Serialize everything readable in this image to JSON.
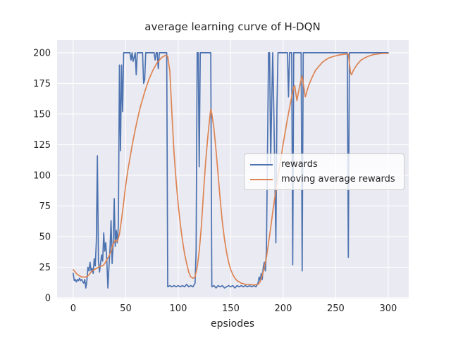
{
  "chart_data": {
    "type": "line",
    "title": "average learning curve of H-DQN",
    "xlabel": "epsiodes",
    "ylabel": "",
    "x_ticks": [
      0,
      50,
      100,
      150,
      200,
      250,
      300
    ],
    "y_ticks": [
      0,
      25,
      50,
      75,
      100,
      125,
      150,
      175,
      200
    ],
    "xlim": [
      -15.4,
      319.5
    ],
    "ylim": [
      -0.6,
      210.3
    ],
    "grid": true,
    "legend_position": "center right",
    "plot_background_color": "#EAEAF2",
    "grid_color": "#FFFFFF",
    "text_color": "#262626",
    "series": [
      {
        "name": "rewards",
        "color": "#4C72B0",
        "points": [
          [
            0,
            20
          ],
          [
            1,
            14
          ],
          [
            2,
            15
          ],
          [
            3,
            13
          ],
          [
            4,
            15
          ],
          [
            5,
            14
          ],
          [
            6,
            16
          ],
          [
            7,
            14
          ],
          [
            8,
            15
          ],
          [
            9,
            13
          ],
          [
            10,
            12
          ],
          [
            11,
            15
          ],
          [
            12,
            8
          ],
          [
            13,
            14
          ],
          [
            14,
            25
          ],
          [
            15,
            22
          ],
          [
            16,
            29
          ],
          [
            17,
            22
          ],
          [
            18,
            24
          ],
          [
            19,
            20
          ],
          [
            20,
            32
          ],
          [
            21,
            26
          ],
          [
            22,
            46
          ],
          [
            23,
            116
          ],
          [
            24,
            30
          ],
          [
            25,
            21
          ],
          [
            26,
            28
          ],
          [
            27,
            35
          ],
          [
            28,
            30
          ],
          [
            29,
            53
          ],
          [
            30,
            38
          ],
          [
            31,
            45
          ],
          [
            32,
            30
          ],
          [
            33,
            8
          ],
          [
            34,
            25
          ],
          [
            35,
            40
          ],
          [
            36,
            63
          ],
          [
            37,
            28
          ],
          [
            38,
            45
          ],
          [
            39,
            81
          ],
          [
            40,
            42
          ],
          [
            41,
            55
          ],
          [
            42,
            45
          ],
          [
            43,
            60
          ],
          [
            44,
            190
          ],
          [
            45,
            120
          ],
          [
            46,
            190
          ],
          [
            47,
            152
          ],
          [
            48,
            200
          ],
          [
            54,
            200
          ],
          [
            55,
            194
          ],
          [
            56,
            200
          ],
          [
            57,
            193
          ],
          [
            59,
            200
          ],
          [
            60,
            182
          ],
          [
            61,
            200
          ],
          [
            66,
            200
          ],
          [
            67,
            175
          ],
          [
            68,
            178
          ],
          [
            69,
            200
          ],
          [
            77,
            200
          ],
          [
            78,
            194
          ],
          [
            79,
            200
          ],
          [
            80,
            200
          ],
          [
            81,
            187
          ],
          [
            82,
            200
          ],
          [
            89,
            200
          ],
          [
            90,
            9
          ],
          [
            92,
            10
          ],
          [
            94,
            9
          ],
          [
            96,
            10
          ],
          [
            98,
            9
          ],
          [
            100,
            10
          ],
          [
            102,
            9
          ],
          [
            104,
            10
          ],
          [
            106,
            9
          ],
          [
            108,
            11
          ],
          [
            110,
            9
          ],
          [
            112,
            10
          ],
          [
            114,
            9
          ],
          [
            116,
            12
          ],
          [
            117,
            38
          ],
          [
            118,
            200
          ],
          [
            119,
            200
          ],
          [
            120,
            107
          ],
          [
            121,
            200
          ],
          [
            131,
            200
          ],
          [
            132,
            9
          ],
          [
            134,
            10
          ],
          [
            136,
            8
          ],
          [
            138,
            10
          ],
          [
            140,
            9
          ],
          [
            142,
            10
          ],
          [
            144,
            8
          ],
          [
            146,
            9
          ],
          [
            148,
            10
          ],
          [
            150,
            9
          ],
          [
            152,
            10
          ],
          [
            154,
            8
          ],
          [
            156,
            10
          ],
          [
            158,
            9
          ],
          [
            160,
            10
          ],
          [
            162,
            9
          ],
          [
            164,
            10
          ],
          [
            166,
            9
          ],
          [
            168,
            10
          ],
          [
            170,
            9
          ],
          [
            172,
            10
          ],
          [
            174,
            9
          ],
          [
            176,
            12
          ],
          [
            177,
            17
          ],
          [
            178,
            14
          ],
          [
            179,
            20
          ],
          [
            180,
            15
          ],
          [
            181,
            25
          ],
          [
            182,
            29
          ],
          [
            183,
            22
          ],
          [
            184,
            39
          ],
          [
            185,
            120
          ],
          [
            186,
            200
          ],
          [
            187,
            200
          ],
          [
            188,
            110
          ],
          [
            189,
            160
          ],
          [
            190,
            200
          ],
          [
            191,
            155
          ],
          [
            192,
            100
          ],
          [
            193,
            45
          ],
          [
            194,
            155
          ],
          [
            195,
            200
          ],
          [
            204,
            200
          ],
          [
            205,
            164
          ],
          [
            206,
            200
          ],
          [
            208,
            200
          ],
          [
            209,
            27
          ],
          [
            210,
            200
          ],
          [
            217,
            200
          ],
          [
            218,
            22
          ],
          [
            219,
            200
          ],
          [
            230,
            200
          ],
          [
            245,
            200
          ],
          [
            261,
            200
          ],
          [
            262,
            33
          ],
          [
            263,
            200
          ],
          [
            275,
            200
          ],
          [
            300,
            200
          ]
        ]
      },
      {
        "name": "moving average rewards",
        "color": "#DD8452",
        "points": [
          [
            0,
            23
          ],
          [
            2,
            21
          ],
          [
            4,
            19
          ],
          [
            6,
            18
          ],
          [
            8,
            17
          ],
          [
            10,
            17
          ],
          [
            12,
            17
          ],
          [
            14,
            18
          ],
          [
            16,
            20
          ],
          [
            18,
            22
          ],
          [
            20,
            23
          ],
          [
            22,
            24
          ],
          [
            24,
            25
          ],
          [
            26,
            26
          ],
          [
            28,
            26
          ],
          [
            30,
            28
          ],
          [
            32,
            31
          ],
          [
            34,
            34
          ],
          [
            36,
            38
          ],
          [
            38,
            44
          ],
          [
            40,
            47
          ],
          [
            42,
            46
          ],
          [
            44,
            52
          ],
          [
            46,
            64
          ],
          [
            48,
            78
          ],
          [
            50,
            92
          ],
          [
            52,
            104
          ],
          [
            54,
            114
          ],
          [
            56,
            124
          ],
          [
            58,
            133
          ],
          [
            60,
            141
          ],
          [
            62,
            149
          ],
          [
            64,
            156
          ],
          [
            66,
            162
          ],
          [
            68,
            168
          ],
          [
            70,
            173
          ],
          [
            72,
            178
          ],
          [
            74,
            182
          ],
          [
            76,
            186
          ],
          [
            78,
            189
          ],
          [
            80,
            192
          ],
          [
            82,
            194
          ],
          [
            84,
            196
          ],
          [
            86,
            197
          ],
          [
            88,
            198
          ],
          [
            90,
            197
          ],
          [
            92,
            185
          ],
          [
            94,
            150
          ],
          [
            96,
            118
          ],
          [
            98,
            95
          ],
          [
            100,
            76
          ],
          [
            102,
            60
          ],
          [
            104,
            47
          ],
          [
            106,
            36
          ],
          [
            108,
            28
          ],
          [
            110,
            21
          ],
          [
            112,
            17
          ],
          [
            114,
            16
          ],
          [
            116,
            17
          ],
          [
            118,
            25
          ],
          [
            120,
            38
          ],
          [
            122,
            58
          ],
          [
            124,
            85
          ],
          [
            126,
            110
          ],
          [
            128,
            130
          ],
          [
            130,
            147
          ],
          [
            131,
            154
          ],
          [
            132,
            150
          ],
          [
            134,
            138
          ],
          [
            136,
            120
          ],
          [
            138,
            100
          ],
          [
            140,
            80
          ],
          [
            142,
            62
          ],
          [
            144,
            48
          ],
          [
            146,
            37
          ],
          [
            148,
            29
          ],
          [
            150,
            23
          ],
          [
            152,
            19
          ],
          [
            154,
            16
          ],
          [
            156,
            14
          ],
          [
            158,
            13
          ],
          [
            160,
            12
          ],
          [
            164,
            11
          ],
          [
            168,
            11
          ],
          [
            172,
            10.5
          ],
          [
            176,
            11
          ],
          [
            178,
            13
          ],
          [
            180,
            18
          ],
          [
            182,
            25
          ],
          [
            184,
            33
          ],
          [
            186,
            45
          ],
          [
            188,
            57
          ],
          [
            190,
            70
          ],
          [
            192,
            82
          ],
          [
            194,
            93
          ],
          [
            196,
            104
          ],
          [
            198,
            115
          ],
          [
            200,
            126
          ],
          [
            202,
            136
          ],
          [
            204,
            146
          ],
          [
            206,
            155
          ],
          [
            208,
            164
          ],
          [
            210,
            172
          ],
          [
            211,
            173
          ],
          [
            213,
            161
          ],
          [
            215,
            170
          ],
          [
            217,
            178
          ],
          [
            218,
            181
          ],
          [
            220,
            170
          ],
          [
            221,
            164
          ],
          [
            223,
            170
          ],
          [
            225,
            175
          ],
          [
            228,
            181
          ],
          [
            231,
            186
          ],
          [
            234,
            189
          ],
          [
            237,
            192
          ],
          [
            240,
            194
          ],
          [
            244,
            196
          ],
          [
            248,
            197
          ],
          [
            252,
            198
          ],
          [
            256,
            198.5
          ],
          [
            260,
            199
          ],
          [
            262,
            199
          ],
          [
            264,
            184
          ],
          [
            265,
            182
          ],
          [
            267,
            186
          ],
          [
            270,
            190
          ],
          [
            274,
            194
          ],
          [
            278,
            196
          ],
          [
            282,
            197.5
          ],
          [
            286,
            198.5
          ],
          [
            290,
            199
          ],
          [
            295,
            199.5
          ],
          [
            300,
            199.5
          ]
        ]
      }
    ]
  }
}
